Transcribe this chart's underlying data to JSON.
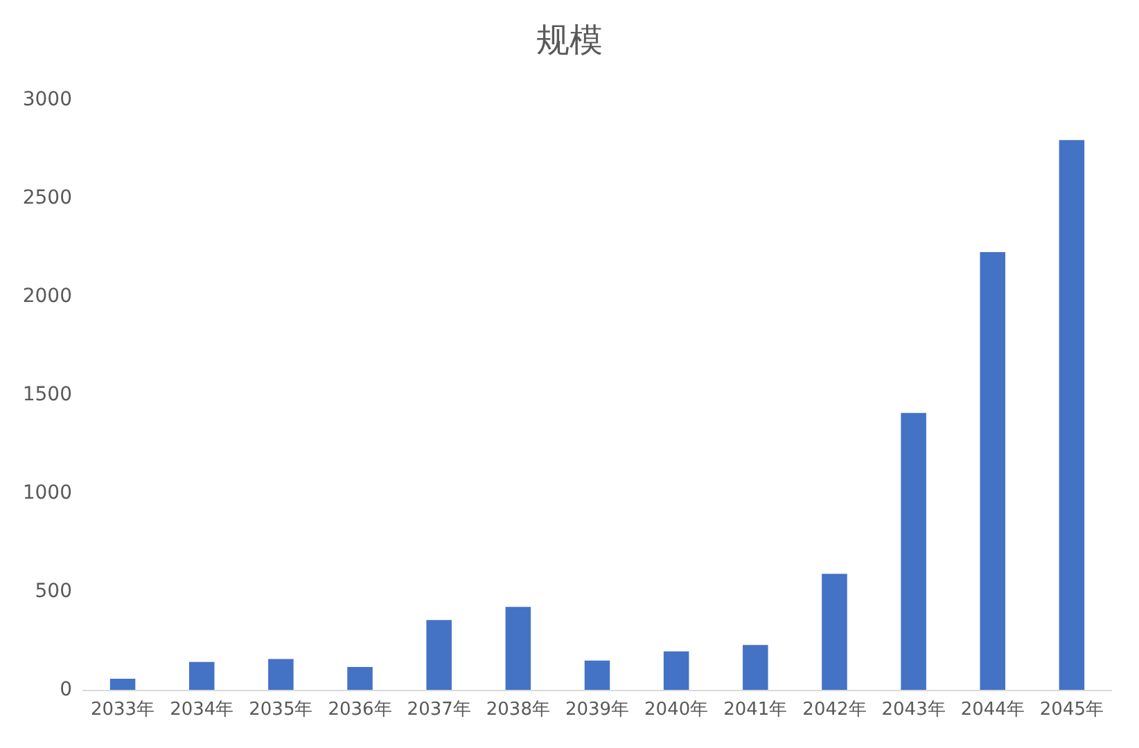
{
  "chart_data": {
    "type": "bar",
    "title": "规模",
    "categories": [
      "2033年",
      "2034年",
      "2035年",
      "2036年",
      "2037年",
      "2038年",
      "2039年",
      "2040年",
      "2041年",
      "2042年",
      "2043年",
      "2044年",
      "2045年"
    ],
    "values": [
      56,
      142,
      157,
      116,
      355,
      422,
      149,
      195,
      228,
      590,
      1408,
      2225,
      2795
    ],
    "color": "#4472c4",
    "ylim": [
      0,
      3000
    ],
    "yticks": [
      0,
      500,
      1000,
      1500,
      2000,
      2500,
      3000
    ],
    "grid": false
  }
}
